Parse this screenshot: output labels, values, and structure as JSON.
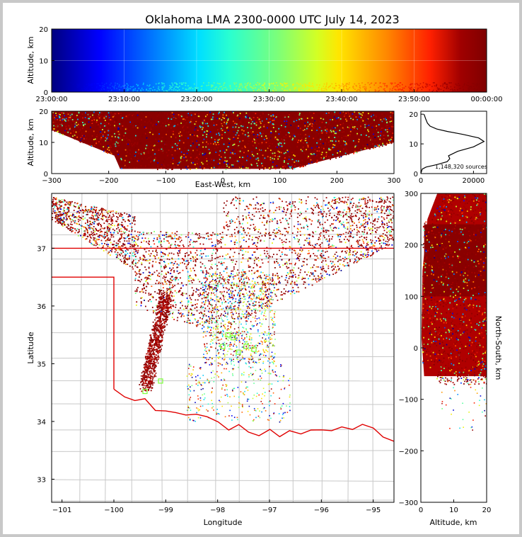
{
  "chart_data": [
    {
      "id": "time_altitude",
      "type": "scatter",
      "title": "Oklahoma LMA 2300-0000 UTC July 14, 2023",
      "ylabel": "Altitude, km",
      "ylim": [
        0,
        20
      ],
      "yticks": [
        "0",
        "10",
        "20"
      ],
      "xticks": [
        "23:00:00",
        "23:10:00",
        "23:20:00",
        "23:30:00",
        "23:40:00",
        "23:50:00",
        "00:00:00"
      ],
      "color_by": "time",
      "colormap": [
        "#00007f",
        "#0000ff",
        "#00bfff",
        "#2affd0",
        "#7cff79",
        "#d3ff24",
        "#ffe600",
        "#ff8800",
        "#ff2000",
        "#a00000",
        "#7f0000"
      ]
    },
    {
      "id": "eastwest_altitude",
      "type": "scatter",
      "xlabel": "East-West, km",
      "ylabel": "Altitude, km",
      "xlim": [
        -300,
        300
      ],
      "ylim": [
        0,
        20
      ],
      "xticks": [
        "−300",
        "−200",
        "−100",
        "0",
        "100",
        "200",
        "300"
      ],
      "yticks": [
        "0",
        "10",
        "20"
      ]
    },
    {
      "id": "altitude_histogram",
      "type": "line",
      "annotation": "1,148,320 sources",
      "xlim": [
        0,
        25000
      ],
      "ylim": [
        0,
        21
      ],
      "xticks": [
        "0",
        "20000"
      ],
      "yticks": [
        "0",
        "10",
        "20"
      ],
      "x": [
        0,
        500,
        2000,
        6000,
        10000,
        11000,
        10500,
        14000,
        20000,
        24000,
        22000,
        16000,
        10000,
        6000,
        3500,
        2500,
        1800,
        1200
      ],
      "y": [
        0,
        1.5,
        2.2,
        3.0,
        4.0,
        5.0,
        6.0,
        7.5,
        9.0,
        10.8,
        12.0,
        13.2,
        14.2,
        15.0,
        16.0,
        17.0,
        18.5,
        20.0
      ]
    },
    {
      "id": "plan_view",
      "type": "scatter",
      "xlabel": "Longitude",
      "ylabel": "Latitude",
      "xlim": [
        -101.2,
        -94.6
      ],
      "ylim": [
        32.6,
        37.95
      ],
      "xticks": [
        "−101",
        "−100",
        "−99",
        "−98",
        "−97",
        "−96",
        "−95"
      ],
      "yticks": [
        "33",
        "34",
        "35",
        "36",
        "37"
      ],
      "boundary_color": "#e00000",
      "county_color": "#c8c8c8"
    },
    {
      "id": "northsouth_altitude",
      "type": "scatter",
      "xlabel": "Altitude, km",
      "ylabel": "North-South, km",
      "xlim": [
        0,
        20
      ],
      "ylim": [
        -300,
        300
      ],
      "xticks": [
        "0",
        "10",
        "20"
      ],
      "yticks": [
        "300",
        "200",
        "100",
        "0",
        "−100",
        "−200",
        "−300"
      ]
    }
  ]
}
